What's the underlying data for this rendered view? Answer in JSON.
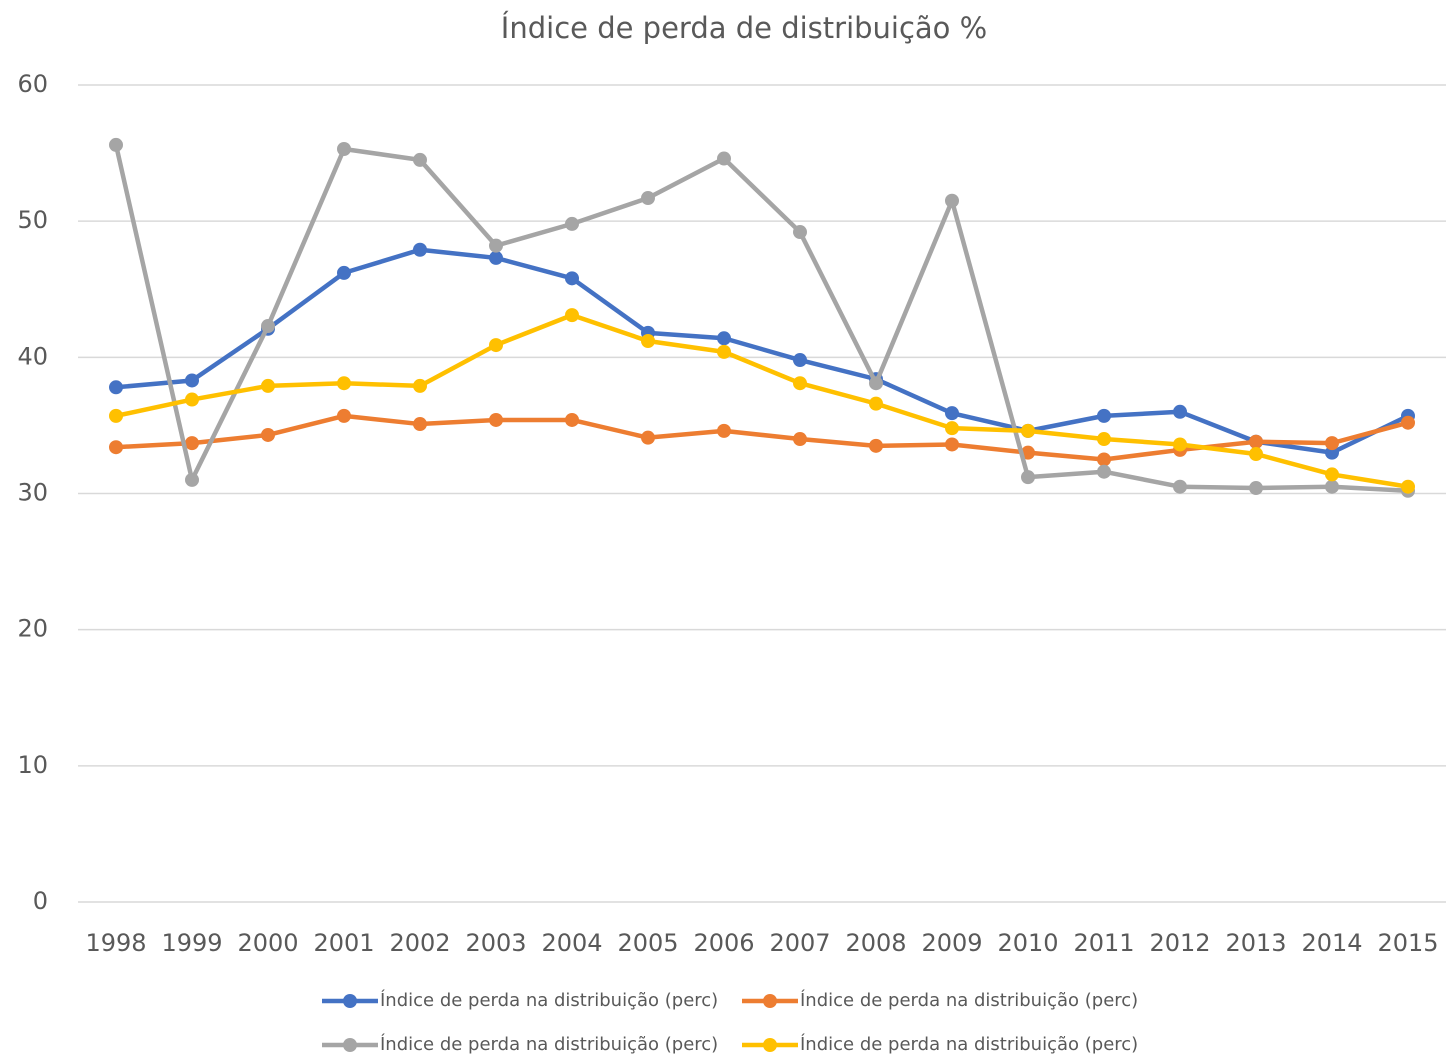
{
  "chart_data": {
    "type": "line",
    "title": "Índice de perda de distribuição %",
    "categories": [
      "1998",
      "1999",
      "2000",
      "2001",
      "2002",
      "2003",
      "2004",
      "2005",
      "2006",
      "2007",
      "2008",
      "2009",
      "2010",
      "2011",
      "2012",
      "2013",
      "2014",
      "2015"
    ],
    "series": [
      {
        "name": "Índice de perda na distribuição (perc)",
        "color": "#4472c4",
        "values": [
          37.8,
          38.3,
          42.1,
          46.2,
          47.9,
          47.3,
          45.8,
          41.8,
          41.4,
          39.8,
          38.4,
          35.9,
          34.6,
          35.7,
          36.0,
          33.8,
          33.0,
          35.7
        ]
      },
      {
        "name": "Índice de perda na distribuição (perc)",
        "color": "#ed7d31",
        "values": [
          33.4,
          33.7,
          34.3,
          35.7,
          35.1,
          35.4,
          35.4,
          34.1,
          34.6,
          34.0,
          33.5,
          33.6,
          33.0,
          32.5,
          33.2,
          33.8,
          33.7,
          35.2
        ]
      },
      {
        "name": "Índice de perda na distribuição (perc)",
        "color": "#a5a5a5",
        "values": [
          55.6,
          31.0,
          42.3,
          55.3,
          54.5,
          48.2,
          49.8,
          51.7,
          54.6,
          49.2,
          38.1,
          51.5,
          31.2,
          31.6,
          30.5,
          30.4,
          30.5,
          30.2
        ]
      },
      {
        "name": "Índice de perda na distribuição (perc)",
        "color": "#ffc000",
        "values": [
          35.7,
          36.9,
          37.9,
          38.1,
          37.9,
          40.9,
          43.1,
          41.2,
          40.4,
          38.1,
          36.6,
          34.8,
          34.6,
          34.0,
          33.6,
          32.9,
          31.4,
          30.5
        ]
      }
    ],
    "ylim": [
      0,
      60
    ],
    "yticks": [
      0,
      10,
      20,
      30,
      40,
      50,
      60
    ],
    "grid": true
  }
}
